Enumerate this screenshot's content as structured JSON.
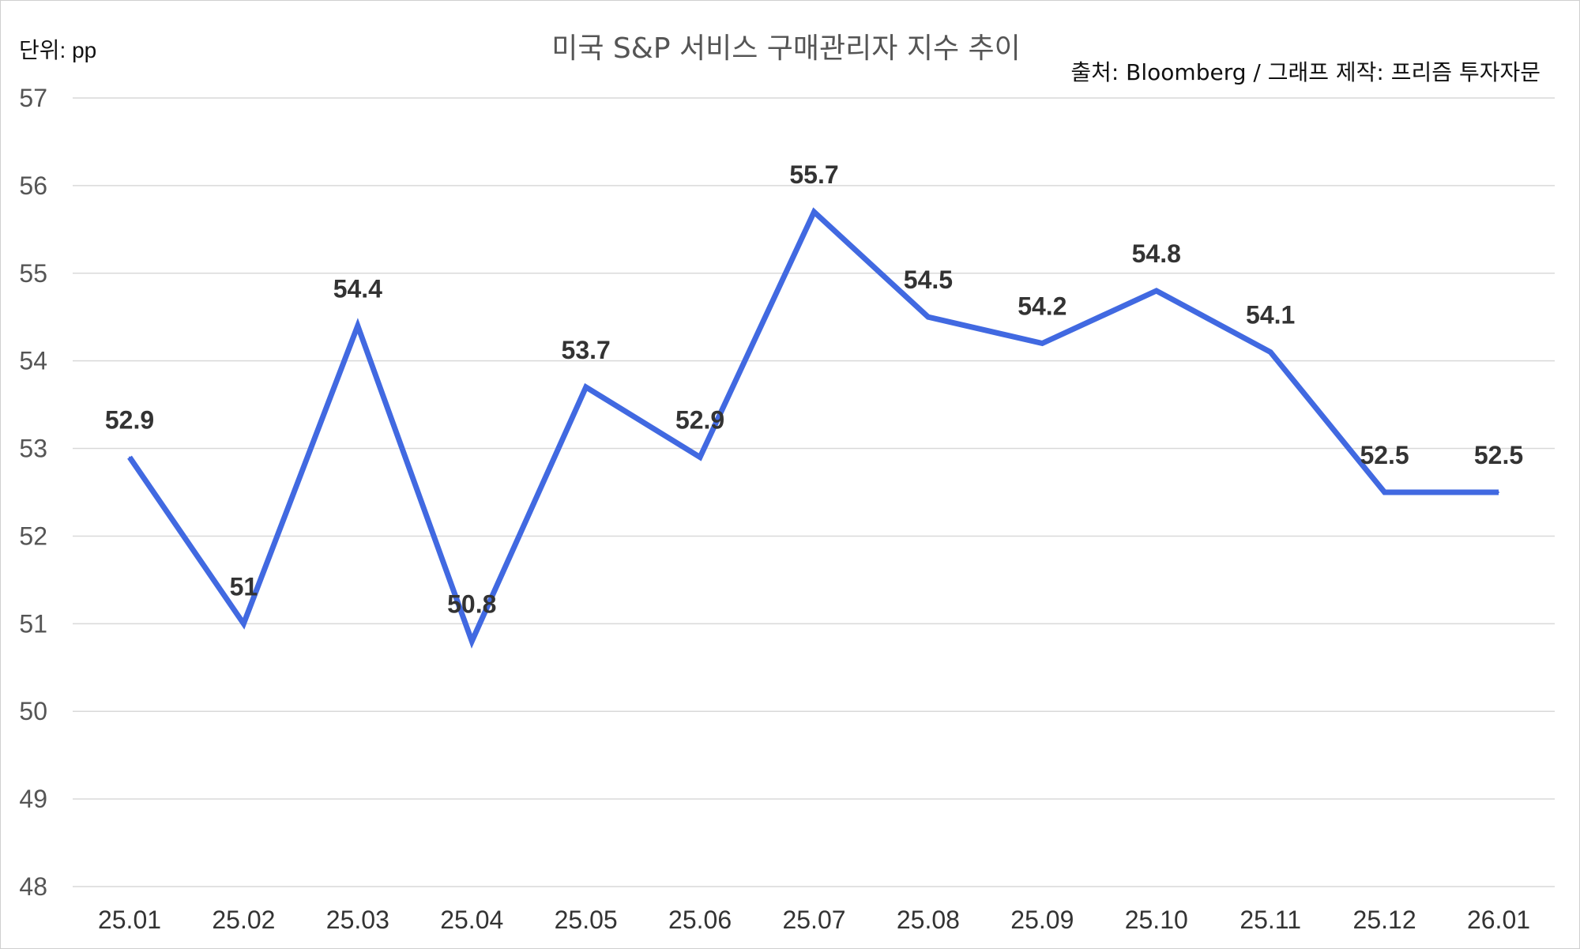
{
  "header": {
    "unit_label": "단위: pp",
    "title": "미국 S&P 서비스 구매관리자 지수 추이",
    "source": "출처: Bloomberg / 그래프 제작: 프리즘 투자자문"
  },
  "chart_data": {
    "type": "line",
    "title": "미국 S&P 서비스 구매관리자 지수 추이",
    "ylabel": "단위: pp",
    "categories": [
      "25.01",
      "25.02",
      "25.03",
      "25.04",
      "25.05",
      "25.06",
      "25.07",
      "25.08",
      "25.09",
      "25.10",
      "25.11",
      "25.12",
      "26.01"
    ],
    "series": [
      {
        "values": [
          52.9,
          51,
          54.4,
          50.8,
          53.7,
          52.9,
          55.7,
          54.5,
          54.2,
          54.8,
          54.1,
          52.5,
          52.5
        ],
        "labels": [
          "52.9",
          "51",
          "54.4",
          "50.8",
          "53.7",
          "52.9",
          "55.7",
          "54.5",
          "54.2",
          "54.8",
          "54.1",
          "52.5",
          "52.5"
        ],
        "color": "#4169E1"
      }
    ],
    "yticks": [
      "48",
      "49",
      "50",
      "51",
      "52",
      "53",
      "54",
      "55",
      "56",
      "57"
    ],
    "ylim": [
      48,
      57
    ],
    "grid": true,
    "legend": "none"
  }
}
